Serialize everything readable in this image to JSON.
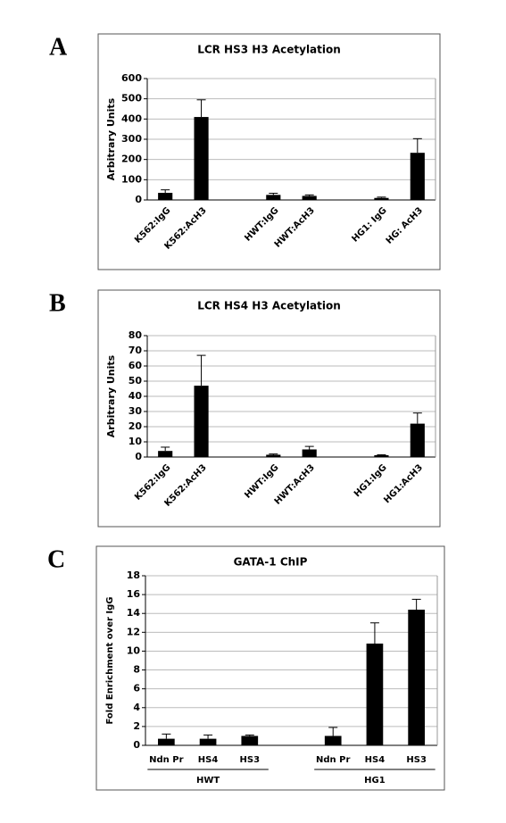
{
  "chart_data": [
    {
      "type": "bar",
      "panel": "A",
      "title": "LCR HS3 H3 Acetylation",
      "y_label": "Arbitrary Units",
      "categories": [
        "K562:IgG",
        "K562:AcH3",
        null,
        "HWT:IgG",
        "HWT:AcH3",
        null,
        "HG1: IgG",
        "HG: AcH3"
      ],
      "values": [
        35,
        410,
        null,
        25,
        20,
        null,
        10,
        233
      ],
      "errors": [
        15,
        85,
        null,
        8,
        5,
        null,
        4,
        70
      ],
      "color": "#000000",
      "ylim": [
        0,
        600
      ],
      "yticks": [
        0,
        100,
        200,
        300,
        400,
        500,
        600
      ],
      "grid": true
    },
    {
      "type": "bar",
      "panel": "B",
      "title": "LCR HS4 H3 Acetylation",
      "y_label": "Arbitrary Units",
      "categories": [
        "K562:IgG",
        "K562:AcH3",
        null,
        "HWT:IgG",
        "HWT:AcH3",
        null,
        "HG1:IgG",
        "HG1:AcH3"
      ],
      "values": [
        4,
        47,
        null,
        1.5,
        5,
        null,
        1.2,
        22
      ],
      "errors": [
        2.5,
        20,
        null,
        0.5,
        2,
        null,
        0.3,
        7
      ],
      "color": "#000000",
      "ylim": [
        0,
        80
      ],
      "yticks": [
        0,
        10,
        20,
        30,
        40,
        50,
        60,
        70,
        80
      ],
      "grid": true
    },
    {
      "type": "bar",
      "panel": "C",
      "title": "GATA-1 ChIP",
      "y_label": "Fold Enrichment over IgG",
      "categories": [
        "Ndn Pr",
        "HS4",
        "HS3",
        null,
        "Ndn Pr",
        "HS4",
        "HS3"
      ],
      "values": [
        0.7,
        0.7,
        1.0,
        null,
        1.0,
        10.8,
        14.4
      ],
      "errors": [
        0.5,
        0.4,
        0.1,
        null,
        0.9,
        2.2,
        1.1
      ],
      "groups": [
        "HWT",
        "HG1"
      ],
      "color": "#000000",
      "ylim": [
        0,
        18
      ],
      "yticks": [
        0,
        2,
        4,
        6,
        8,
        10,
        12,
        14,
        16,
        18
      ],
      "grid": true
    }
  ]
}
